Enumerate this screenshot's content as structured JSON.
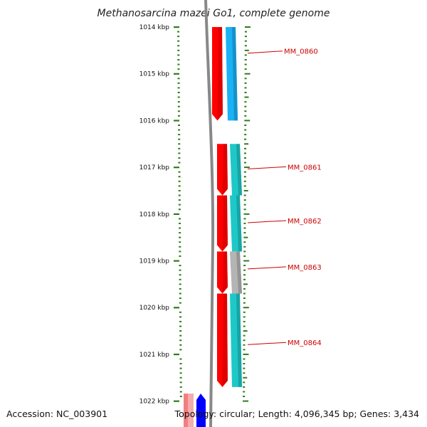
{
  "title": "Methanosarcina mazei Go1, complete genome",
  "footer": {
    "accession": "Accession: NC_003901",
    "summary": "Topology: circular; Length: 4,096,345 bp; Genes: 3,434"
  },
  "colors": {
    "tick": "#2e7d1a",
    "backbone": "#888888",
    "label": "#cc0000",
    "strand_forward": "#ff0000",
    "track_blue": "#1ab2f5",
    "track_teal": "#1ec8c8",
    "track_gray": "#b4b4b4"
  },
  "axis": {
    "unit": "kbp",
    "range_kbp": [
      1014,
      1022
    ],
    "ticks": [
      {
        "label": "1014 kbp",
        "kbp": 1014
      },
      {
        "label": "1015 kbp",
        "kbp": 1015
      },
      {
        "label": "1016 kbp",
        "kbp": 1016
      },
      {
        "label": "1017 kbp",
        "kbp": 1017
      },
      {
        "label": "1018 kbp",
        "kbp": 1018
      },
      {
        "label": "1019 kbp",
        "kbp": 1019
      },
      {
        "label": "1020 kbp",
        "kbp": 1020
      },
      {
        "label": "1021 kbp",
        "kbp": 1021
      },
      {
        "label": "1022 kbp",
        "kbp": 1022
      }
    ]
  },
  "genes": [
    {
      "name": "MM_0860",
      "start_kbp": 1014.0,
      "end_kbp": 1016.0,
      "strand": "forward",
      "track_color": "blue"
    },
    {
      "name": "MM_0861",
      "start_kbp": 1016.5,
      "end_kbp": 1017.6,
      "strand": "forward",
      "track_color": "teal"
    },
    {
      "name": "MM_0862",
      "start_kbp": 1017.6,
      "end_kbp": 1018.8,
      "strand": "forward",
      "track_color": "teal"
    },
    {
      "name": "MM_0863",
      "start_kbp": 1018.8,
      "end_kbp": 1019.7,
      "strand": "forward",
      "track_color": "gray"
    },
    {
      "name": "MM_0864",
      "start_kbp": 1019.7,
      "end_kbp": 1021.7,
      "strand": "forward",
      "track_color": "teal"
    }
  ],
  "partial_features": [
    {
      "name": "partial-feature-pink",
      "color": "#f08080",
      "start_kbp": 1021.9
    },
    {
      "name": "partial-feature-blue",
      "color": "#0000ff",
      "start_kbp": 1021.9
    }
  ]
}
